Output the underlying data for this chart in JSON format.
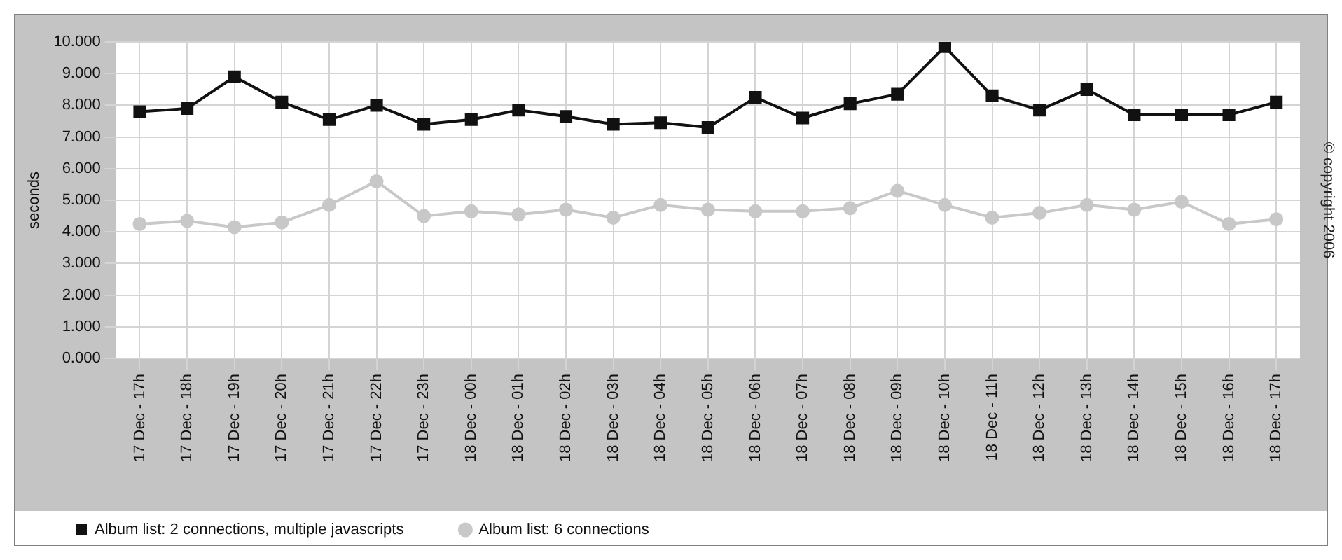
{
  "chart_data": {
    "type": "line",
    "ylabel": "seconds",
    "categories": [
      "17 Dec - 17h",
      "17 Dec - 18h",
      "17 Dec - 19h",
      "17 Dec - 20h",
      "17 Dec - 21h",
      "17 Dec - 22h",
      "17 Dec - 23h",
      "18 Dec - 00h",
      "18 Dec - 01h",
      "18 Dec - 02h",
      "18 Dec - 03h",
      "18 Dec - 04h",
      "18 Dec - 05h",
      "18 Dec - 06h",
      "18 Dec - 07h",
      "18 Dec - 08h",
      "18 Dec - 09h",
      "18 Dec - 10h",
      "18 Dec - 11h",
      "18 Dec - 12h",
      "18 Dec - 13h",
      "18 Dec - 14h",
      "18 Dec - 15h",
      "18 Dec - 16h",
      "18 Dec - 17h"
    ],
    "series": [
      {
        "name": "Album list: 2 connections, multiple javascripts",
        "color": "#111111",
        "marker": "square",
        "values": [
          7.8,
          7.9,
          8.9,
          8.1,
          7.55,
          8.0,
          7.4,
          7.55,
          7.85,
          7.65,
          7.4,
          7.45,
          7.3,
          8.25,
          7.6,
          8.05,
          8.35,
          9.85,
          8.3,
          7.85,
          8.5,
          7.7,
          7.7,
          7.7,
          8.1
        ]
      },
      {
        "name": "Album list: 6 connections",
        "color": "#c8c8c8",
        "marker": "circle",
        "values": [
          4.25,
          4.35,
          4.15,
          4.3,
          4.85,
          5.6,
          4.5,
          4.65,
          4.55,
          4.7,
          4.45,
          4.85,
          4.7,
          4.65,
          4.65,
          4.75,
          5.3,
          4.85,
          4.45,
          4.6,
          4.85,
          4.7,
          4.95,
          4.25,
          4.4
        ]
      }
    ],
    "ylim": [
      0,
      10
    ],
    "yticks": [
      {
        "value": 0,
        "label": "0.000"
      },
      {
        "value": 1,
        "label": "1.000"
      },
      {
        "value": 2,
        "label": "2.000"
      },
      {
        "value": 3,
        "label": "3.000"
      },
      {
        "value": 4,
        "label": "4.000"
      },
      {
        "value": 5,
        "label": "5.000"
      },
      {
        "value": 6,
        "label": "6.000"
      },
      {
        "value": 7,
        "label": "7.000"
      },
      {
        "value": 8,
        "label": "8.000"
      },
      {
        "value": 9,
        "label": "9.000"
      },
      {
        "value": 10,
        "label": "10.000"
      }
    ],
    "grid": true,
    "legend": "bottom",
    "line_style": "solid",
    "annotations": [
      "© copyright 2006"
    ]
  }
}
